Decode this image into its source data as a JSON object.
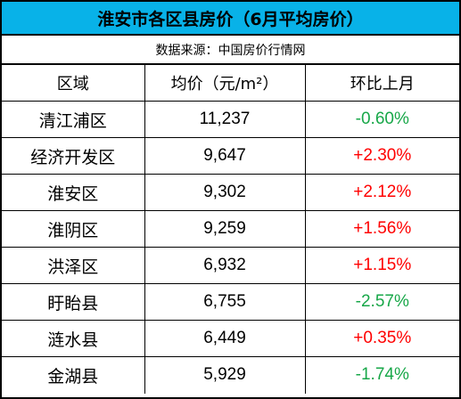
{
  "header": {
    "title": "淮安市各区县房价（6月平均房价）",
    "source": "数据来源：中国房价行情网"
  },
  "table": {
    "columns": [
      "区域",
      "均价（元/m²）",
      "环比上月"
    ],
    "rows": [
      {
        "district": "清江浦区",
        "price": "11,237",
        "change": "-0.60%",
        "direction": "down"
      },
      {
        "district": "经济开发区",
        "price": "9,647",
        "change": "+2.30%",
        "direction": "up"
      },
      {
        "district": "淮安区",
        "price": "9,302",
        "change": "+2.12%",
        "direction": "up"
      },
      {
        "district": "淮阴区",
        "price": "9,259",
        "change": "+1.56%",
        "direction": "up"
      },
      {
        "district": "洪泽区",
        "price": "6,932",
        "change": "+1.15%",
        "direction": "up"
      },
      {
        "district": "盱眙县",
        "price": "6,755",
        "change": "-2.57%",
        "direction": "down"
      },
      {
        "district": "涟水县",
        "price": "6,449",
        "change": "+0.35%",
        "direction": "up"
      },
      {
        "district": "金湖县",
        "price": "5,929",
        "change": "-1.74%",
        "direction": "down"
      }
    ]
  },
  "colors": {
    "title_bg": "#08b2e8",
    "increase": "#ff0000",
    "decrease": "#17a748"
  }
}
